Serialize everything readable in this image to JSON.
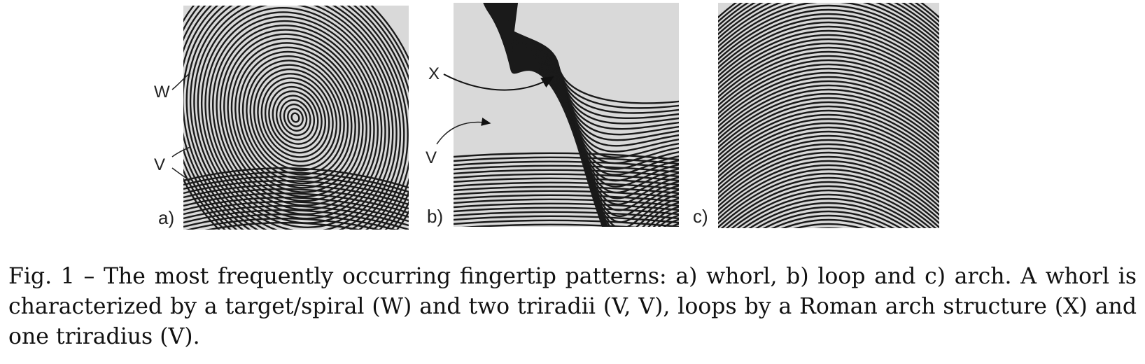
{
  "figure": {
    "panels": [
      {
        "id": "a",
        "letter": "a)",
        "markers": [
          "W",
          "V"
        ],
        "pattern": "whorl"
      },
      {
        "id": "b",
        "letter": "b)",
        "markers": [
          "X",
          "V"
        ],
        "pattern": "loop"
      },
      {
        "id": "c",
        "letter": "c)",
        "markers": [],
        "pattern": "arch"
      }
    ]
  },
  "caption": {
    "prefix": "Fig. 1",
    "text": " – The most frequently occurring fingertip patterns: a) whorl, b) loop and c) arch. A whorl is characterized by a target/spiral (W) and two triradii (V, V), loops by a Roman arch structure (X) and one triradius (V)."
  }
}
